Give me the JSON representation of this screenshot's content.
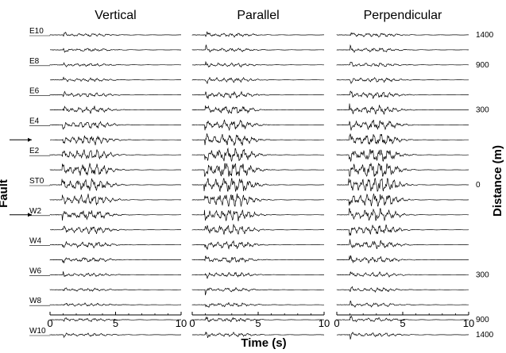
{
  "chart_data": {
    "type": "line",
    "panels": [
      {
        "title": "Vertical"
      },
      {
        "title": "Parallel"
      },
      {
        "title": "Perpendicular"
      }
    ],
    "stations": [
      "E10",
      "E9",
      "E8",
      "E7",
      "E6",
      "E5",
      "E4",
      "E3",
      "E2",
      "E1",
      "ST0",
      "W1",
      "W2",
      "W3",
      "W4",
      "W5",
      "W6",
      "W7",
      "W8",
      "W9",
      "W10"
    ],
    "station_labels": [
      {
        "station": "E10",
        "text": "E10"
      },
      {
        "station": "E8",
        "text": "E8"
      },
      {
        "station": "E6",
        "text": "E6"
      },
      {
        "station": "E4",
        "text": "E4"
      },
      {
        "station": "E2",
        "text": "E2"
      },
      {
        "station": "ST0",
        "text": "ST0"
      },
      {
        "station": "W2",
        "text": "W2"
      },
      {
        "station": "W4",
        "text": "W4"
      },
      {
        "station": "W6",
        "text": "W6"
      },
      {
        "station": "W8",
        "text": "W8"
      },
      {
        "station": "W10",
        "text": "W10"
      }
    ],
    "distance_labels": [
      {
        "station": "E10",
        "text": "1400"
      },
      {
        "station": "E8",
        "text": "900"
      },
      {
        "station": "E5",
        "text": "300"
      },
      {
        "station": "ST0",
        "text": "0"
      },
      {
        "station": "W6",
        "text": "300"
      },
      {
        "station": "W9",
        "text": "900"
      },
      {
        "station": "W10",
        "text": "1400"
      }
    ],
    "fault_arrows": [
      "E3",
      "W2"
    ],
    "fault_label": "Fault",
    "x_ticks": [
      "0",
      "5",
      "10"
    ],
    "xlim": [
      0,
      10
    ],
    "xlabel": "Time (s)",
    "ylabel": "Distance (m)",
    "grid": false
  }
}
